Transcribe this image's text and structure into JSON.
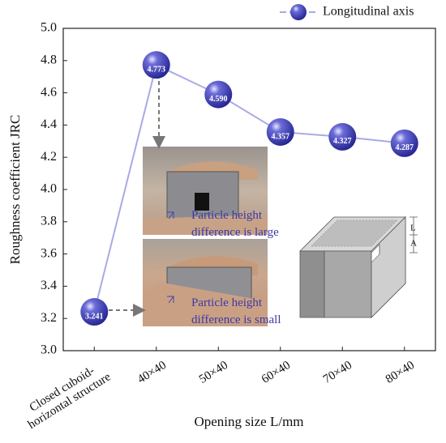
{
  "chart_data": {
    "type": "line",
    "categories": [
      "Closed cuboid-\nhorizontal structure",
      "40×40",
      "50×40",
      "60×40",
      "70×40",
      "80×40"
    ],
    "series": [
      {
        "name": "Longitudinal axis",
        "color": "#a9a9e6",
        "values": [
          3.241,
          4.773,
          4.59,
          4.357,
          4.327,
          4.287
        ],
        "value_labels": [
          "3.241",
          "4.773",
          "4.590",
          "4.357",
          "4.327",
          "4.287"
        ]
      }
    ],
    "ylim": [
      3.0,
      5.0
    ],
    "yticks": [
      {
        "value": 3.0,
        "label": "3.0"
      },
      {
        "value": 3.2,
        "label": "3.2"
      },
      {
        "value": 3.4,
        "label": "3.4"
      },
      {
        "value": 3.6,
        "label": "3.6"
      },
      {
        "value": 3.8,
        "label": "3.8"
      },
      {
        "value": 4.0,
        "label": "4.0"
      },
      {
        "value": 4.2,
        "label": "4.2"
      },
      {
        "value": 4.4,
        "label": "4.4"
      },
      {
        "value": 4.6,
        "label": "4.6"
      },
      {
        "value": 4.8,
        "label": "4.8"
      },
      {
        "value": 5.0,
        "label": "5.0"
      }
    ],
    "ylabel": "Roughness coefficient JRC",
    "xlabel": "Opening size L/mm",
    "annotations": [
      "Particle height difference is large",
      "Particle height difference is small"
    ],
    "diagram_labels": [
      "L",
      "A"
    ],
    "legend": "top-right"
  }
}
